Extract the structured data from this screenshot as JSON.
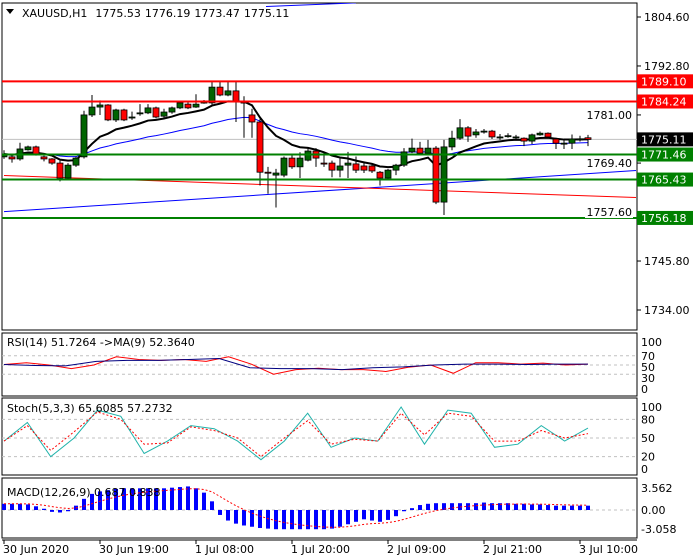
{
  "header": {
    "symbol": "XAUUSD,H1",
    "open": "1775.53",
    "high": "1776.19",
    "low": "1773.47",
    "close": "1775.11"
  },
  "price_axis": {
    "ticks": [
      1804.6,
      1792.8,
      1781.0,
      1769.4,
      1757.6,
      1745.8,
      1734.0
    ],
    "labels": [
      "1804.60",
      "1792.80",
      "1781.00",
      "1769.40",
      "1757.60",
      "1745.80",
      "1734.00"
    ],
    "range": [
      1734.0,
      1804.6
    ]
  },
  "levels": [
    {
      "price": 1789.1,
      "label": "1789.10",
      "color": "#ff0000"
    },
    {
      "price": 1784.24,
      "label": "1784.24",
      "color": "#ff0000"
    },
    {
      "price": 1771.46,
      "label": "1771.46",
      "color": "#008000"
    },
    {
      "price": 1765.43,
      "label": "1765.43",
      "color": "#008000"
    },
    {
      "price": 1756.18,
      "label": "1756.18",
      "color": "#008000"
    }
  ],
  "current_price": {
    "price": 1775.11,
    "label": "1775.11",
    "color": "#000000"
  },
  "colors": {
    "bull": "#006400",
    "bear": "#ff0000",
    "ma_fast": "#000000",
    "ma_slow": "#0000ff",
    "ma_long": "#ff0000"
  },
  "candles": [
    [
      1770.9,
      1771.6,
      1772.5,
      1770.4
    ],
    [
      1770.9,
      1770.4,
      1771.5,
      1769.5
    ],
    [
      1770.4,
      1772.8,
      1774.3,
      1770
    ],
    [
      1772.6,
      1773.3,
      1773.6,
      1772.4
    ],
    [
      1773.3,
      1771.6,
      1773.6,
      1771.2
    ],
    [
      1770.9,
      1770.4,
      1771.2,
      1769.8
    ],
    [
      1770.4,
      1769.4,
      1770.6,
      1769
    ],
    [
      1769.4,
      1765.8,
      1770,
      1765
    ],
    [
      1765.8,
      1768.9,
      1769.4,
      1765.5
    ],
    [
      1768.9,
      1770.6,
      1771,
      1768.5
    ],
    [
      1770.9,
      1781,
      1782,
      1770.5
    ],
    [
      1781,
      1782.9,
      1785.8,
      1780.5
    ],
    [
      1782.9,
      1783.4,
      1784.5,
      1781
    ],
    [
      1783.4,
      1779.8,
      1783.6,
      1779.5
    ],
    [
      1779.8,
      1782.2,
      1782.5,
      1779.3
    ],
    [
      1782.2,
      1779.8,
      1782.5,
      1779.5
    ],
    [
      1780.3,
      1780.5,
      1781.8,
      1779.8
    ],
    [
      1781.3,
      1781.5,
      1783.6,
      1780.8
    ],
    [
      1781.5,
      1782.7,
      1783.6,
      1781.2
    ],
    [
      1782.7,
      1780.5,
      1783,
      1780.2
    ],
    [
      1780.7,
      1781.7,
      1782.5,
      1780.3
    ],
    [
      1781.7,
      1782.7,
      1783,
      1781.3
    ],
    [
      1782.7,
      1783.9,
      1784.3,
      1782.4
    ],
    [
      1783.6,
      1782.7,
      1784,
      1782.4
    ],
    [
      1782.9,
      1783.6,
      1786,
      1782.7
    ],
    [
      1783.9,
      1784.1,
      1784.6,
      1783.7
    ],
    [
      1783.9,
      1787.7,
      1789,
      1783.5
    ],
    [
      1787.7,
      1785.8,
      1789.1,
      1785.5
    ],
    [
      1785.8,
      1786.8,
      1789.1,
      1785.5
    ],
    [
      1786.8,
      1784.1,
      1789.1,
      1779.3
    ],
    [
      1784.1,
      1784,
      1785.5,
      1775.5
    ],
    [
      1781,
      1779.3,
      1782.5,
      1775.5
    ],
    [
      1779.3,
      1767.2,
      1780,
      1764
    ],
    [
      1767.2,
      1767,
      1768.5,
      1762
    ],
    [
      1766.5,
      1767,
      1768,
      1758.7
    ],
    [
      1766.5,
      1770.6,
      1771,
      1766
    ],
    [
      1770.6,
      1768.5,
      1771.5,
      1768
    ],
    [
      1768.5,
      1770.6,
      1772,
      1765.8
    ],
    [
      1770.1,
      1772.3,
      1773,
      1769.8
    ],
    [
      1772.3,
      1770.6,
      1773,
      1768.5
    ],
    [
      1769.4,
      1769.2,
      1772,
      1768.5
    ],
    [
      1769.4,
      1767.7,
      1770,
      1766
    ],
    [
      1767.7,
      1768.7,
      1770.5,
      1766
    ],
    [
      1768.9,
      1769.4,
      1772.1,
      1765.8
    ],
    [
      1769.2,
      1767.7,
      1771,
      1767
    ],
    [
      1768.7,
      1767.7,
      1769.5,
      1767
    ],
    [
      1768.7,
      1767.5,
      1769,
      1767
    ],
    [
      1767.2,
      1765.8,
      1767.5,
      1764
    ],
    [
      1765.8,
      1767.7,
      1768,
      1765.5
    ],
    [
      1767.7,
      1768.9,
      1769.2,
      1766.5
    ],
    [
      1768.9,
      1772.1,
      1773,
      1768.5
    ],
    [
      1772.1,
      1773,
      1775.3,
      1771.8
    ],
    [
      1773,
      1771.8,
      1774.5,
      1771.5
    ],
    [
      1771.8,
      1773,
      1775,
      1771.5
    ],
    [
      1773,
      1760,
      1773.5,
      1759.5
    ],
    [
      1760,
      1773.3,
      1775,
      1756.9
    ],
    [
      1773.3,
      1775.4,
      1777.2,
      1772.5
    ],
    [
      1775.4,
      1777.9,
      1780,
      1775
    ],
    [
      1777.9,
      1775.9,
      1778.3,
      1774.5
    ],
    [
      1776.2,
      1776.9,
      1777.6,
      1775.5
    ],
    [
      1776.9,
      1777.1,
      1777.6,
      1776.5
    ],
    [
      1777.1,
      1775.7,
      1777.4,
      1775.2
    ],
    [
      1775.7,
      1775.7,
      1776.4,
      1775
    ],
    [
      1775.9,
      1776,
      1776.6,
      1775.5
    ],
    [
      1775.7,
      1775.7,
      1776.2,
      1775.2
    ],
    [
      1775.4,
      1774.7,
      1775.6,
      1773.5
    ],
    [
      1774.7,
      1776.2,
      1776.5,
      1774
    ],
    [
      1776.2,
      1776.6,
      1777,
      1776
    ],
    [
      1776.6,
      1775.7,
      1776.8,
      1775.4
    ],
    [
      1775.2,
      1774.2,
      1775.5,
      1772.8
    ],
    [
      1774.2,
      1774.2,
      1775.2,
      1772.8
    ],
    [
      1774.2,
      1775.2,
      1776.3,
      1772.8
    ],
    [
      1775.2,
      1775.2,
      1776,
      1774.6
    ],
    [
      1775.5,
      1775.1,
      1776.2,
      1773.5
    ]
  ],
  "trendlines": [
    {
      "name": "channel-upper",
      "from": [
        0,
        1804.6
      ],
      "to": [
        44,
        1808.0
      ],
      "color": "#0000ff"
    },
    {
      "name": "channel-lower",
      "from": [
        0,
        1757.7
      ],
      "to": [
        79,
        1767.6
      ],
      "color": "#0000ff"
    },
    {
      "name": "ma-long",
      "from": [
        0,
        1766.4
      ],
      "to": [
        79,
        1761.1
      ],
      "color": "#ff0000"
    }
  ],
  "time_axis": {
    "labels": [
      "30 Jun 2020",
      "30 Jun 19:00",
      "1 Jul 08:00",
      "1 Jul 20:00",
      "2 Jul 09:00",
      "2 Jul 21:00",
      "3 Jul 10:00"
    ],
    "every": 12
  },
  "rsi": {
    "title": "RSI(14) 51.7264  ->MA(9) 52.3640",
    "levels": [
      "100",
      "70",
      "50",
      "30",
      "0"
    ],
    "values": [
      51,
      55,
      50,
      42,
      50,
      68,
      62,
      60,
      62,
      58,
      68,
      52,
      30,
      40,
      43,
      40,
      40,
      36,
      45,
      50,
      32,
      55,
      55,
      52,
      54,
      50,
      52
    ],
    "ma": [
      51,
      49,
      48,
      58,
      60,
      60,
      62,
      64,
      44,
      42,
      42,
      40,
      44,
      46,
      50,
      52,
      52,
      51,
      52,
      52
    ]
  },
  "stoch": {
    "title": "Stoch(5,3,3) 65.6085 57.2732",
    "levels": [
      "100",
      "80",
      "50",
      "20",
      "0"
    ],
    "main": [
      45,
      75,
      20,
      50,
      95,
      85,
      25,
      45,
      70,
      65,
      45,
      15,
      45,
      90,
      35,
      50,
      45,
      100,
      40,
      95,
      90,
      35,
      40,
      70,
      45,
      66
    ],
    "signal": [
      45,
      70,
      30,
      60,
      92,
      80,
      40,
      42,
      68,
      62,
      50,
      20,
      50,
      78,
      40,
      48,
      45,
      90,
      55,
      90,
      85,
      45,
      45,
      62,
      50,
      57
    ]
  },
  "macd": {
    "title": "MACD(12,26,9) 0.687 0.838",
    "levels": [
      "3.562",
      "0.00",
      "-3.058"
    ],
    "range": [
      -3.058,
      3.562
    ],
    "hist": [
      1.0,
      1.0,
      1.0,
      0.9,
      0.6,
      0.2,
      -0.3,
      -0.4,
      -0.2,
      0.7,
      1.8,
      2.6,
      3.0,
      3.2,
      3.4,
      3.5,
      3.5,
      3.5,
      3.5,
      3.5,
      3.5,
      3.6,
      3.7,
      3.8,
      3.5,
      2.8,
      1.4,
      -0.8,
      -1.7,
      -2.2,
      -2.5,
      -2.7,
      -2.9,
      -3.0,
      -3.1,
      -3.1,
      -3.1,
      -3.1,
      -3.1,
      -3.1,
      -3.1,
      -3.0,
      -2.7,
      -2.3,
      -1.9,
      -1.5,
      -1.7,
      -1.9,
      -1.6,
      -1.0,
      -0.2,
      0.3,
      0.8,
      1.0,
      1.1,
      1.1,
      1.1,
      1.1,
      1.1,
      1.1,
      1.2,
      1.1,
      1.1,
      1.1,
      1.0,
      1.0,
      0.9,
      0.9,
      0.8,
      0.7,
      0.7,
      0.7,
      0.7,
      0.7
    ]
  }
}
